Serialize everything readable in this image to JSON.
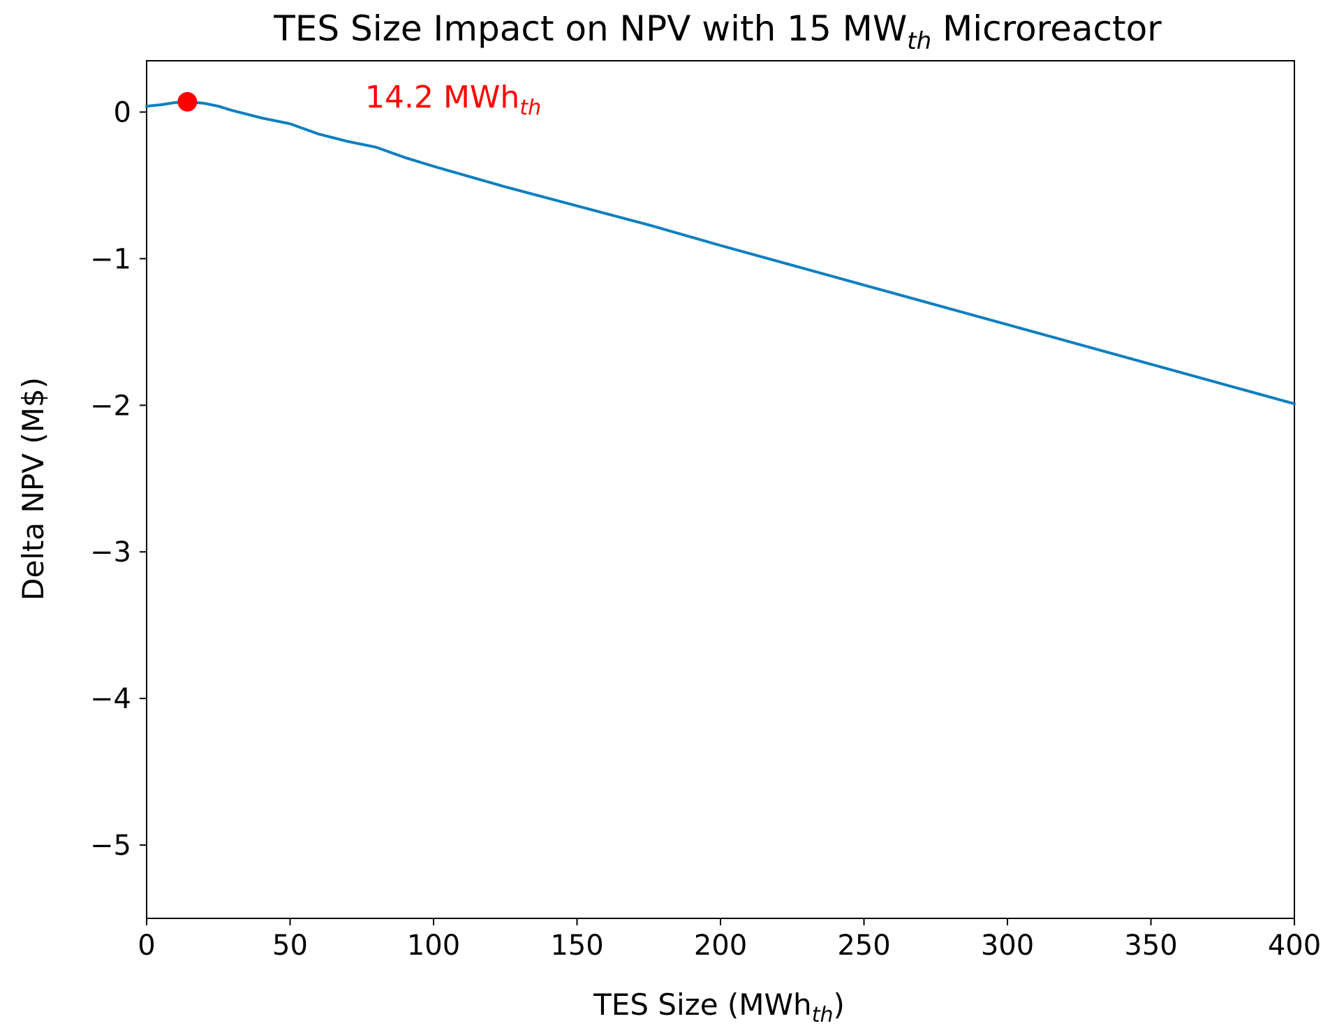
{
  "chart_data": {
    "type": "line",
    "title": {
      "main": "TES Size Impact on NPV with 15 MW",
      "sub": "th",
      "tail": " Microreactor"
    },
    "xlabel": {
      "main": "TES Size (MWh",
      "sub": "th",
      "tail": ")"
    },
    "ylabel": "Delta NPV (M$)",
    "xlim": [
      0,
      400
    ],
    "ylim": [
      -5.5,
      0.35
    ],
    "xticks": [
      {
        "value": 0,
        "label": "0"
      },
      {
        "value": 50,
        "label": "50"
      },
      {
        "value": 100,
        "label": "100"
      },
      {
        "value": 150,
        "label": "150"
      },
      {
        "value": 200,
        "label": "200"
      },
      {
        "value": 250,
        "label": "250"
      },
      {
        "value": 300,
        "label": "300"
      },
      {
        "value": 350,
        "label": "350"
      },
      {
        "value": 400,
        "label": "400"
      }
    ],
    "yticks": [
      {
        "value": 0,
        "label": "0"
      },
      {
        "value": -1,
        "label": "−1"
      },
      {
        "value": -2,
        "label": "−2"
      },
      {
        "value": -3,
        "label": "−3"
      },
      {
        "value": -4,
        "label": "−4"
      },
      {
        "value": -5,
        "label": "−5"
      }
    ],
    "grid": false,
    "series": [
      {
        "name": "Delta NPV",
        "color": "#0e7fc0",
        "x": [
          0,
          5,
          10,
          14.2,
          20,
          25,
          30,
          40,
          50,
          60,
          70,
          80,
          90,
          100,
          125,
          150,
          175,
          200,
          250,
          300,
          350,
          400
        ],
        "y": [
          0.04,
          0.05,
          0.065,
          0.07,
          0.06,
          0.04,
          0.01,
          -0.04,
          -0.08,
          -0.15,
          -0.2,
          -0.24,
          -0.31,
          -0.37,
          -0.51,
          -0.64,
          -0.77,
          -0.91,
          -1.18,
          -1.45,
          -1.72,
          -1.99
        ]
      }
    ],
    "annotations": [
      {
        "name": "optimum",
        "x": 14.2,
        "y": 0.07,
        "color": "#ff0000",
        "text": {
          "main": "14.2 MWh",
          "sub": "th"
        }
      }
    ]
  }
}
